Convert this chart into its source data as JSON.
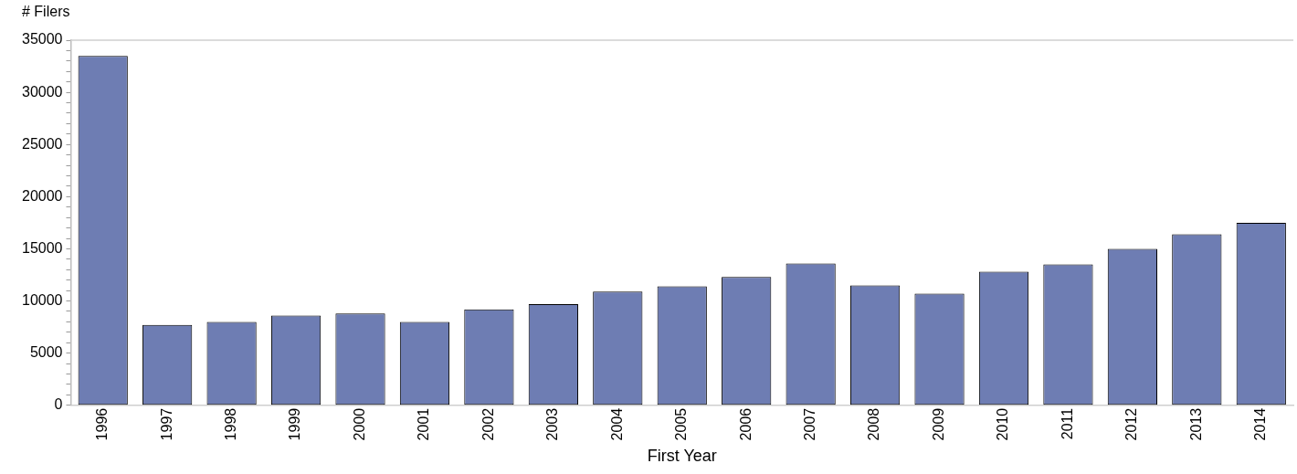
{
  "chart_data": {
    "type": "bar",
    "ylabel": "# Filers",
    "xlabel": "First Year",
    "categories": [
      "1996",
      "1997",
      "1998",
      "1999",
      "2000",
      "2001",
      "2002",
      "2003",
      "2004",
      "2005",
      "2006",
      "2007",
      "2008",
      "2009",
      "2010",
      "2011",
      "2012",
      "2013",
      "2014"
    ],
    "values": [
      33500,
      7700,
      8000,
      8600,
      8800,
      8000,
      9200,
      9700,
      10900,
      11400,
      12300,
      13600,
      11500,
      10700,
      12800,
      13500,
      15000,
      16400,
      17500
    ],
    "color": "#6e7db3",
    "ylim": [
      0,
      35000
    ],
    "yticks": [
      0,
      {
        "value": 1000,
        "label": null
      },
      {
        "value": 2000,
        "label": null
      },
      {
        "value": 3000,
        "label": null
      },
      {
        "value": 4000,
        "label": null
      },
      5000,
      {
        "value": 6000,
        "label": null
      },
      {
        "value": 7000,
        "label": null
      },
      {
        "value": 8000,
        "label": null
      },
      {
        "value": 9000,
        "label": null
      },
      10000,
      {
        "value": 11000,
        "label": null
      },
      {
        "value": 12000,
        "label": null
      },
      {
        "value": 13000,
        "label": null
      },
      {
        "value": 14000,
        "label": null
      },
      15000,
      {
        "value": 16000,
        "label": null
      },
      {
        "value": 17000,
        "label": null
      },
      {
        "value": 18000,
        "label": null
      },
      {
        "value": 19000,
        "label": null
      },
      20000,
      {
        "value": 21000,
        "label": null
      },
      {
        "value": 22000,
        "label": null
      },
      {
        "value": 23000,
        "label": null
      },
      {
        "value": 24000,
        "label": null
      },
      25000,
      {
        "value": 26000,
        "label": null
      },
      {
        "value": 27000,
        "label": null
      },
      {
        "value": 28000,
        "label": null
      },
      {
        "value": 29000,
        "label": null
      },
      30000,
      {
        "value": 31000,
        "label": null
      },
      {
        "value": 32000,
        "label": null
      },
      {
        "value": 33000,
        "label": null
      },
      {
        "value": 34000,
        "label": null
      },
      35000
    ],
    "grid": false,
    "legend": false
  }
}
